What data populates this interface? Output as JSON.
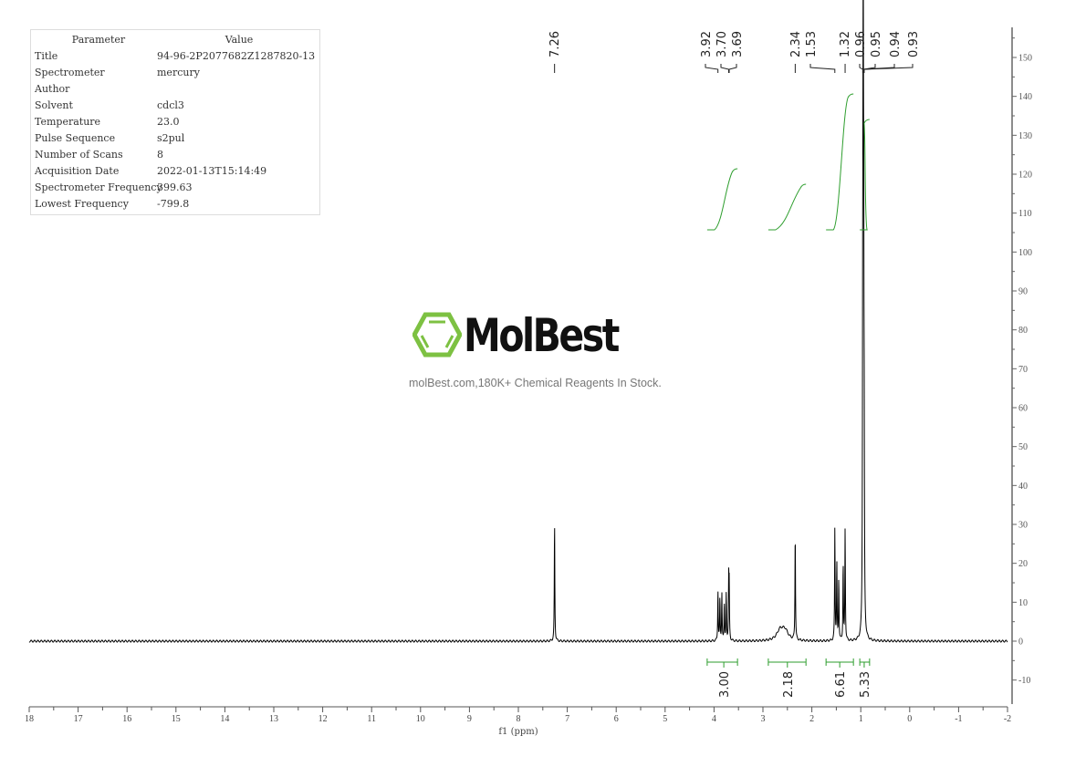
{
  "parameters": {
    "header": {
      "param": "Parameter",
      "value": "Value"
    },
    "rows": [
      {
        "param": "Title",
        "value": "94-96-2P2077682Z1287820-13"
      },
      {
        "param": "Spectrometer",
        "value": "mercury"
      },
      {
        "param": "Author",
        "value": ""
      },
      {
        "param": "Solvent",
        "value": "cdcl3"
      },
      {
        "param": "Temperature",
        "value": "23.0"
      },
      {
        "param": "Pulse Sequence",
        "value": "s2pul"
      },
      {
        "param": "Number of Scans",
        "value": "8"
      },
      {
        "param": "Acquisition Date",
        "value": "2022-01-13T15:14:49"
      },
      {
        "param": "Spectrometer Frequency",
        "value": "399.63"
      },
      {
        "param": "Lowest Frequency",
        "value": "-799.8"
      }
    ]
  },
  "watermark": {
    "brand": "MolBest",
    "tagline": "molBest.com,180K+ Chemical Reagents In Stock.",
    "color": "#7dc142"
  },
  "chart_data": {
    "type": "line",
    "xlabel": "f1 (ppm)",
    "xlim": [
      18,
      -2
    ],
    "ylim": [
      -15,
      155
    ],
    "x_ticks": [
      "18",
      "17",
      "16",
      "15",
      "14",
      "13",
      "12",
      "11",
      "10",
      "9",
      "8",
      "7",
      "6",
      "5",
      "4",
      "3",
      "2",
      "1",
      "0",
      "-1",
      "-2"
    ],
    "y_ticks": [
      "150",
      "140",
      "130",
      "120",
      "110",
      "100",
      "90",
      "80",
      "70",
      "60",
      "50",
      "40",
      "30",
      "20",
      "10",
      "0",
      "-10"
    ],
    "line_color": "#000000",
    "integral_color": "#2e9e2e",
    "peaks": [
      {
        "ppm": 7.26,
        "intensity": 31
      },
      {
        "ppm": 3.92,
        "intensity": 13
      },
      {
        "ppm": 3.88,
        "intensity": 11
      },
      {
        "ppm": 3.84,
        "intensity": 12
      },
      {
        "ppm": 3.79,
        "intensity": 10
      },
      {
        "ppm": 3.75,
        "intensity": 12
      },
      {
        "ppm": 3.7,
        "intensity": 15
      },
      {
        "ppm": 3.69,
        "intensity": 13
      },
      {
        "ppm": 2.65,
        "intensity": 2.5
      },
      {
        "ppm": 2.55,
        "intensity": 2.5
      },
      {
        "ppm": 2.34,
        "intensity": 28
      },
      {
        "ppm": 1.53,
        "intensity": 29
      },
      {
        "ppm": 1.49,
        "intensity": 20
      },
      {
        "ppm": 1.45,
        "intensity": 16
      },
      {
        "ppm": 1.36,
        "intensity": 20
      },
      {
        "ppm": 1.32,
        "intensity": 29
      },
      {
        "ppm": 0.96,
        "intensity": 75
      },
      {
        "ppm": 0.95,
        "intensity": 143
      },
      {
        "ppm": 0.94,
        "intensity": 78
      },
      {
        "ppm": 0.93,
        "intensity": 40
      }
    ],
    "peak_labels": [
      "7.26",
      "3.92",
      "3.70",
      "3.69",
      "2.34",
      "1.53",
      "1.32",
      "0.96",
      "0.95",
      "0.94",
      "0.93"
    ],
    "integrals": [
      {
        "from": 4.14,
        "to": 3.52,
        "center": 3.8,
        "value": "3.00"
      },
      {
        "from": 2.89,
        "to": 2.12,
        "center": 2.5,
        "value": "2.18"
      },
      {
        "from": 1.71,
        "to": 1.15,
        "center": 1.43,
        "value": "6.61"
      },
      {
        "from": 1.02,
        "to": 0.82,
        "center": 0.93,
        "value": "5.33"
      }
    ]
  }
}
